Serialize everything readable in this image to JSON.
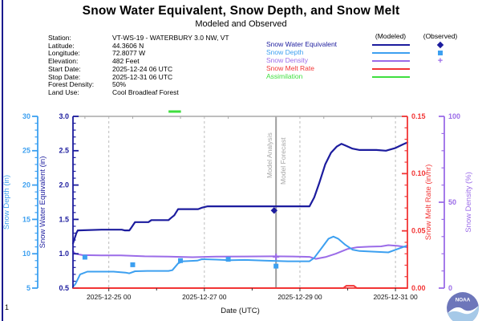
{
  "page": {
    "number": "1"
  },
  "header": {
    "title": "Snow Water Equivalent, Snow Depth, and Snow Melt",
    "subtitle": "Modeled and Observed"
  },
  "station": {
    "rows": [
      {
        "label": "Station:",
        "value": "VT-WS-19 - WATERBURY 3.0 NW, VT"
      },
      {
        "label": "Latitude:",
        "value": "44.3606 N"
      },
      {
        "label": "Longitude:",
        "value": "72.8077 W"
      },
      {
        "label": "Elevation:",
        "value": "482 Feet"
      },
      {
        "label": "Start Date:",
        "value": "2025-12-24 06 UTC"
      },
      {
        "label": "Stop Date:",
        "value": "2025-12-31 06 UTC"
      },
      {
        "label": "Forest Density:",
        "value": "50%"
      },
      {
        "label": "Land Use:",
        "value": "Cool Broadleaf Forest"
      }
    ]
  },
  "legend": {
    "modeled_header": "(Modeled)",
    "observed_header": "(Observed)",
    "entries": [
      {
        "label": "Snow Water Equivalent",
        "color": "#1c1c9e",
        "marker": "diamond"
      },
      {
        "label": "Snow Depth",
        "color": "#3da0f0",
        "marker": "square"
      },
      {
        "label": "Snow Density",
        "color": "#9b6ce8",
        "marker": "plus"
      },
      {
        "label": "Snow Melt Rate",
        "color": "#f23535",
        "marker": ""
      },
      {
        "label": "Assimilation",
        "color": "#3fdf3f",
        "marker": ""
      }
    ]
  },
  "logo": {
    "text": "NOAA"
  },
  "chart_data": {
    "type": "line",
    "x": {
      "label": "Date (UTC)",
      "start": "2025-12-24 06 UTC",
      "end": "2025-12-31 06 UTC",
      "span_days": 7,
      "major_ticks": [
        {
          "t": 0.75,
          "label": "2025-12-25 00"
        },
        {
          "t": 2.75,
          "label": "2025-12-27 00"
        },
        {
          "t": 4.75,
          "label": "2025-12-29 00"
        },
        {
          "t": 6.75,
          "label": "2025-12-31 00"
        }
      ],
      "minor_day_ticks": [
        1.75,
        3.75,
        5.75
      ],
      "top_ticks": [
        0.25,
        1.25,
        2.25,
        3.25,
        4.25,
        5.25,
        6.25
      ]
    },
    "axes": [
      {
        "id": "depth",
        "title": "Snow Depth (in)",
        "min": 5,
        "max": 30,
        "major": 5,
        "minor": 1,
        "decimals": 0,
        "color": "#3da0f0",
        "position": "outer-left"
      },
      {
        "id": "swe",
        "title": "Snow Water Equivalent (in)",
        "min": 0.5,
        "max": 3.0,
        "major": 0.5,
        "minor": 0.1,
        "decimals": 1,
        "color": "#1c1c9e",
        "position": "left"
      },
      {
        "id": "melt",
        "title": "Snow Melt Rate (in/hr)",
        "min": 0,
        "max": 0.15,
        "major": 0.05,
        "minor": 0.01,
        "decimals": 2,
        "color": "#f23535",
        "position": "right"
      },
      {
        "id": "density",
        "title": "Snow Density (%)",
        "min": 0,
        "max": 100,
        "major": 50,
        "minor": 10,
        "decimals": 0,
        "color": "#9b6ce8",
        "position": "outer-right"
      }
    ],
    "series": [
      {
        "id": "melt-modeled",
        "name": "Snow Melt Rate (Modeled)",
        "axis": "melt",
        "color": "#f23535",
        "width": 2,
        "points": [
          [
            0,
            0
          ],
          [
            5.66,
            0
          ],
          [
            5.72,
            0.002
          ],
          [
            5.88,
            0.002
          ],
          [
            5.94,
            0
          ],
          [
            7,
            0
          ]
        ]
      },
      {
        "id": "density-modeled",
        "name": "Snow Density (Modeled)",
        "axis": "density",
        "color": "#9b6ce8",
        "width": 2,
        "points": [
          [
            0,
            21.5
          ],
          [
            0.05,
            20.0
          ],
          [
            0.2,
            19.2
          ],
          [
            0.6,
            19.0
          ],
          [
            1.0,
            19.0
          ],
          [
            1.5,
            18.5
          ],
          [
            2.0,
            18.3
          ],
          [
            2.5,
            18.0
          ],
          [
            3.0,
            18.3
          ],
          [
            3.6,
            18.4
          ],
          [
            4.2,
            18.5
          ],
          [
            4.6,
            18.4
          ],
          [
            4.95,
            18.2
          ],
          [
            5.08,
            17.0
          ],
          [
            5.3,
            18.2
          ],
          [
            5.5,
            20.0
          ],
          [
            5.75,
            22.8
          ],
          [
            5.95,
            23.8
          ],
          [
            6.2,
            24.1
          ],
          [
            6.45,
            24.3
          ],
          [
            6.6,
            25.0
          ],
          [
            6.8,
            24.6
          ],
          [
            7,
            23.8
          ]
        ]
      },
      {
        "id": "depth-modeled",
        "name": "Snow Depth (Modeled)",
        "axis": "depth",
        "color": "#3da0f0",
        "width": 2,
        "points": [
          [
            0,
            5.2
          ],
          [
            0.05,
            5.6
          ],
          [
            0.15,
            7.0
          ],
          [
            0.3,
            7.4
          ],
          [
            0.85,
            7.4
          ],
          [
            1.0,
            7.3
          ],
          [
            1.1,
            7.25
          ],
          [
            1.18,
            7.15
          ],
          [
            1.3,
            7.45
          ],
          [
            1.55,
            7.5
          ],
          [
            2.0,
            7.5
          ],
          [
            2.08,
            7.6
          ],
          [
            2.2,
            8.6
          ],
          [
            2.3,
            8.9
          ],
          [
            2.6,
            9.0
          ],
          [
            2.7,
            9.2
          ],
          [
            3.0,
            9.15
          ],
          [
            3.3,
            9.05
          ],
          [
            3.6,
            9.1
          ],
          [
            4.0,
            9.0
          ],
          [
            4.5,
            8.9
          ],
          [
            4.95,
            8.9
          ],
          [
            5.05,
            9.4
          ],
          [
            5.2,
            10.8
          ],
          [
            5.35,
            12.2
          ],
          [
            5.45,
            12.5
          ],
          [
            5.55,
            12.2
          ],
          [
            5.7,
            11.3
          ],
          [
            5.85,
            10.6
          ],
          [
            6.0,
            10.4
          ],
          [
            6.3,
            10.3
          ],
          [
            6.6,
            10.2
          ],
          [
            6.8,
            10.7
          ],
          [
            7,
            11.2
          ]
        ]
      },
      {
        "id": "swe-modeled",
        "name": "Snow Water Equivalent (Modeled)",
        "axis": "swe",
        "color": "#1c1c9e",
        "width": 2.2,
        "points": [
          [
            0,
            1.15
          ],
          [
            0.07,
            1.3
          ],
          [
            0.1,
            1.34
          ],
          [
            0.6,
            1.35
          ],
          [
            1.02,
            1.35
          ],
          [
            1.08,
            1.34
          ],
          [
            1.18,
            1.34
          ],
          [
            1.22,
            1.38
          ],
          [
            1.3,
            1.46
          ],
          [
            1.58,
            1.46
          ],
          [
            1.64,
            1.49
          ],
          [
            2.0,
            1.49
          ],
          [
            2.05,
            1.52
          ],
          [
            2.12,
            1.56
          ],
          [
            2.2,
            1.65
          ],
          [
            2.62,
            1.65
          ],
          [
            2.7,
            1.67
          ],
          [
            2.82,
            1.69
          ],
          [
            4.95,
            1.69
          ],
          [
            5.05,
            1.82
          ],
          [
            5.15,
            2.02
          ],
          [
            5.28,
            2.3
          ],
          [
            5.4,
            2.47
          ],
          [
            5.52,
            2.56
          ],
          [
            5.62,
            2.6
          ],
          [
            5.72,
            2.57
          ],
          [
            5.85,
            2.53
          ],
          [
            6.0,
            2.51
          ],
          [
            6.35,
            2.51
          ],
          [
            6.55,
            2.5
          ],
          [
            6.75,
            2.54
          ],
          [
            6.9,
            2.59
          ],
          [
            7,
            2.62
          ]
        ]
      }
    ],
    "observed": [
      {
        "id": "swe-observed",
        "name": "Snow Water Equivalent (Observed)",
        "axis": "swe",
        "marker": "diamond",
        "color": "#1c1c9e",
        "points": [
          [
            4.21,
            1.63
          ]
        ]
      },
      {
        "id": "depth-observed",
        "name": "Snow Depth (Observed)",
        "axis": "depth",
        "marker": "square",
        "color": "#3da0f0",
        "points": [
          [
            0.25,
            9.5
          ],
          [
            1.25,
            8.4
          ],
          [
            2.25,
            9.0
          ],
          [
            3.25,
            9.2
          ],
          [
            4.25,
            8.2
          ]
        ]
      },
      {
        "id": "density-observed",
        "name": "Snow Density (Observed)",
        "axis": "density",
        "marker": "plus",
        "color": "#9b6ce8",
        "points": [
          [
            4.25,
            18.2
          ]
        ]
      }
    ],
    "annotations": {
      "analysis_line": {
        "t": 4.25,
        "left_label": "Model Analysis",
        "right_label": "Model Forecast",
        "color": "#9e9e9e",
        "label_color": "#a6a6a6"
      },
      "assimilation_segment": {
        "t0": 2.0,
        "t1": 2.26,
        "color": "#3fdf3f"
      }
    },
    "style": {
      "grid_color": "#bcbcbc",
      "top_border_color": "#a8a8a8",
      "bottom_tick_color": "#333333",
      "page_border_color": "#1a1a8e"
    }
  }
}
